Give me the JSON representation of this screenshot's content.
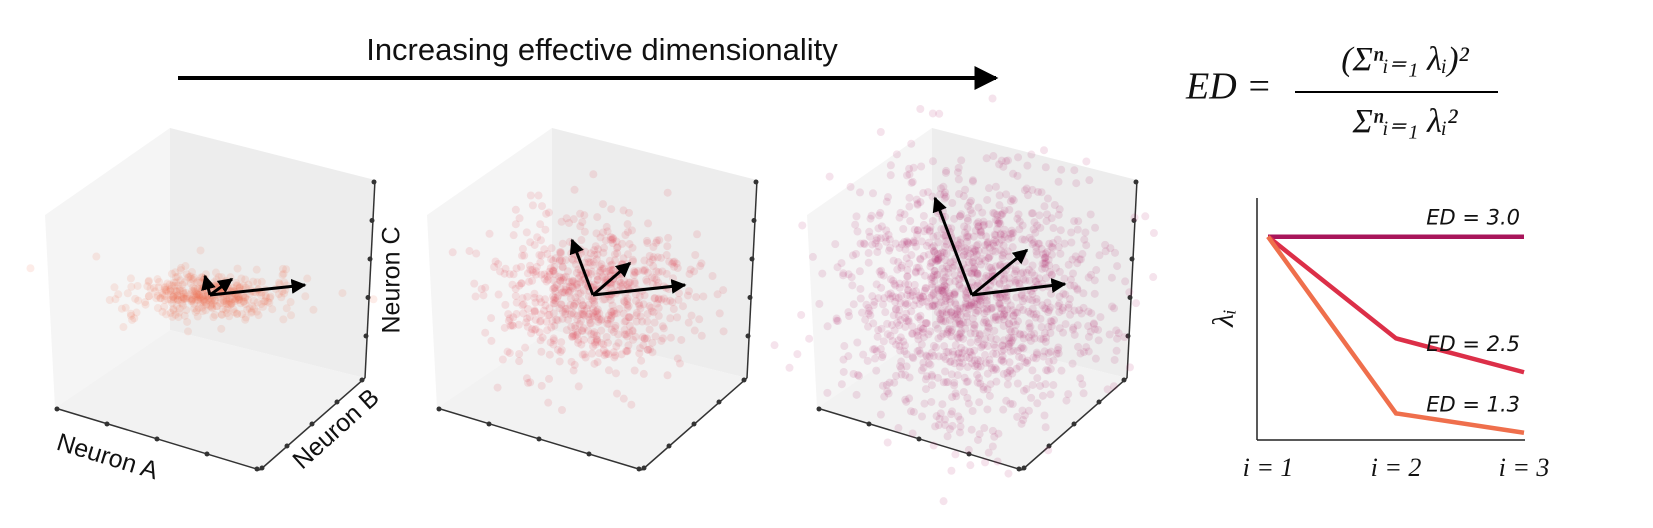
{
  "banner": {
    "text": "Increasing effective dimensionality"
  },
  "formula": {
    "lhs": "ED =",
    "numerator": "(Σⁿᵢ₌₁ λᵢ)²",
    "denominator": "Σⁿᵢ₌₁ λᵢ²"
  },
  "scatter_axes": {
    "x_label": "Neuron A",
    "y_label": "Neuron B",
    "z_label": "Neuron C"
  },
  "chart_data": {
    "type": "line",
    "y_label": "λᵢ",
    "categories": [
      "i = 1",
      "i = 2",
      "i = 3"
    ],
    "ylim": [
      0,
      1
    ],
    "series": [
      {
        "name": "ED = 3.0",
        "color": "#a8155a",
        "values": [
          0.84,
          0.84,
          0.84
        ]
      },
      {
        "name": "ED = 2.5",
        "color": "#dc2f48",
        "values": [
          0.84,
          0.42,
          0.28
        ]
      },
      {
        "name": "ED = 1.3",
        "color": "#ef6f4c",
        "values": [
          0.84,
          0.11,
          0.03
        ]
      }
    ]
  }
}
